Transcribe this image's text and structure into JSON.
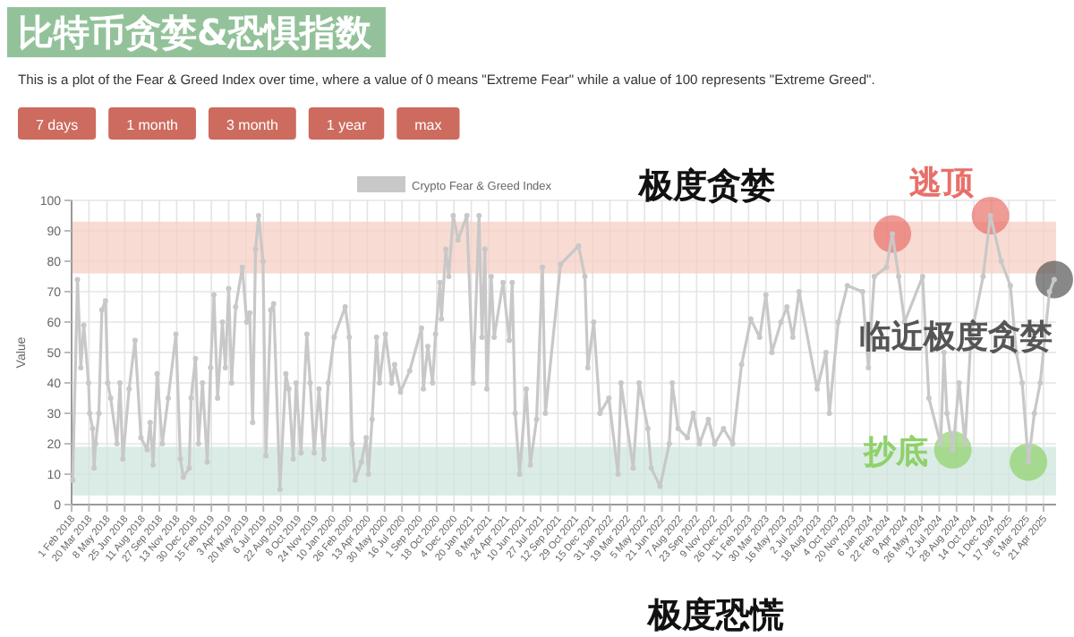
{
  "chart_data": [
    {
      "type": "other",
      "title": "比特币贪婪&恐惧指数",
      "subtitle": "This is a plot of the Fear & Greed Index over time, where a value of 0 means \"Extreme Fear\" while a value of 100 represents \"Extreme Greed\".",
      "annotations": [
        "7 days",
        "1 month",
        "3 month",
        "1 year",
        "max"
      ]
    },
    {
      "type": "line",
      "ylabel": "Value",
      "grid": true,
      "legend": "top",
      "marker": "circle",
      "ylim": [
        0,
        100
      ],
      "yticks": [
        0,
        10,
        20,
        30,
        40,
        50,
        60,
        70,
        80,
        90,
        100
      ],
      "xlim": [
        "2018-02-01",
        "2025-05-25"
      ],
      "xticks": [
        {
          "value": "2018-02-01",
          "label": "1 Feb 2018"
        },
        {
          "value": "2018-03-20",
          "label": "20 Mar 2018"
        },
        {
          "value": "2018-05-08",
          "label": "8 May 2018"
        },
        {
          "value": "2018-06-25",
          "label": "25 Jun 2018"
        },
        {
          "value": "2018-08-11",
          "label": "11 Aug 2018"
        },
        {
          "value": "2018-09-27",
          "label": "27 Sep 2018"
        },
        {
          "value": "2018-11-13",
          "label": "13 Nov 2018"
        },
        {
          "value": "2018-12-30",
          "label": "30 Dec 2018"
        },
        {
          "value": "2019-02-15",
          "label": "15 Feb 2019"
        },
        {
          "value": "2019-04-03",
          "label": "3 Apr 2019"
        },
        {
          "value": "2019-05-20",
          "label": "20 May 2019"
        },
        {
          "value": "2019-07-06",
          "label": "6 Jul 2019"
        },
        {
          "value": "2019-08-22",
          "label": "22 Aug 2019"
        },
        {
          "value": "2019-10-08",
          "label": "8 Oct 2019"
        },
        {
          "value": "2019-11-24",
          "label": "24 Nov 2019"
        },
        {
          "value": "2020-01-10",
          "label": "10 Jan 2020"
        },
        {
          "value": "2020-02-26",
          "label": "26 Feb 2020"
        },
        {
          "value": "2020-04-13",
          "label": "13 Apr 2020"
        },
        {
          "value": "2020-05-30",
          "label": "30 May 2020"
        },
        {
          "value": "2020-07-16",
          "label": "16 Jul 2020"
        },
        {
          "value": "2020-09-01",
          "label": "1 Sep 2020"
        },
        {
          "value": "2020-10-18",
          "label": "18 Oct 2020"
        },
        {
          "value": "2020-12-04",
          "label": "4 Dec 2020"
        },
        {
          "value": "2021-01-20",
          "label": "20 Jan 2021"
        },
        {
          "value": "2021-03-08",
          "label": "8 Mar 2021"
        },
        {
          "value": "2021-04-24",
          "label": "24 Apr 2021"
        },
        {
          "value": "2021-06-10",
          "label": "10 Jun 2021"
        },
        {
          "value": "2021-07-27",
          "label": "27 Jul 2021"
        },
        {
          "value": "2021-09-12",
          "label": "12 Sep 2021"
        },
        {
          "value": "2021-10-29",
          "label": "29 Oct 2021"
        },
        {
          "value": "2021-12-15",
          "label": "15 Dec 2021"
        },
        {
          "value": "2022-01-31",
          "label": "31 Jan 2022"
        },
        {
          "value": "2022-03-19",
          "label": "19 Mar 2022"
        },
        {
          "value": "2022-05-05",
          "label": "5 May 2022"
        },
        {
          "value": "2022-06-21",
          "label": "21 Jun 2022"
        },
        {
          "value": "2022-08-07",
          "label": "7 Aug 2022"
        },
        {
          "value": "2022-09-23",
          "label": "23 Sep 2022"
        },
        {
          "value": "2022-11-09",
          "label": "9 Nov 2022"
        },
        {
          "value": "2022-12-26",
          "label": "26 Dec 2022"
        },
        {
          "value": "2023-02-11",
          "label": "11 Feb 2023"
        },
        {
          "value": "2023-03-30",
          "label": "30 Mar 2023"
        },
        {
          "value": "2023-05-16",
          "label": "16 May 2023"
        },
        {
          "value": "2023-07-02",
          "label": "2 Jul 2023"
        },
        {
          "value": "2023-08-18",
          "label": "18 Aug 2023"
        },
        {
          "value": "2023-10-04",
          "label": "4 Oct 2023"
        },
        {
          "value": "2023-11-20",
          "label": "20 Nov 2023"
        },
        {
          "value": "2024-01-06",
          "label": "6 Jan 2024"
        },
        {
          "value": "2024-02-22",
          "label": "22 Feb 2024"
        },
        {
          "value": "2024-04-09",
          "label": "9 Apr 2024"
        },
        {
          "value": "2024-05-26",
          "label": "26 May 2024"
        },
        {
          "value": "2024-07-12",
          "label": "12 Jul 2024"
        },
        {
          "value": "2024-08-28",
          "label": "28 Aug 2024"
        },
        {
          "value": "2024-10-14",
          "label": "14 Oct 2024"
        },
        {
          "value": "2024-12-01",
          "label": "1 Dec 2024"
        },
        {
          "value": "2025-01-17",
          "label": "17 Jan 2025"
        },
        {
          "value": "2025-03-05",
          "label": "5 Mar 2025"
        },
        {
          "value": "2025-04-21",
          "label": "21 Apr 2025"
        }
      ],
      "bands": [
        {
          "axis": "y",
          "from": 76,
          "to": 93,
          "color": "#f5cfc4",
          "label": "极度贪婪"
        },
        {
          "axis": "y",
          "from": 3,
          "to": 19,
          "color": "#cfe6de",
          "label": "极度恐慌"
        }
      ],
      "series": [
        {
          "name": "Crypto Fear & Greed Index",
          "color": "#c8c8c8",
          "x": [
            "2018-02-04",
            "2018-02-17",
            "2018-02-26",
            "2018-03-06",
            "2018-03-19",
            "2018-03-22",
            "2018-03-30",
            "2018-04-03",
            "2018-04-07",
            "2018-04-16",
            "2018-04-24",
            "2018-05-04",
            "2018-05-10",
            "2018-05-18",
            "2018-06-04",
            "2018-06-12",
            "2018-06-20",
            "2018-07-07",
            "2018-07-23",
            "2018-08-08",
            "2018-08-25",
            "2018-09-02",
            "2018-09-10",
            "2018-09-21",
            "2018-10-05",
            "2018-10-21",
            "2018-11-11",
            "2018-11-23",
            "2018-12-01",
            "2018-12-17",
            "2018-12-22",
            "2019-01-03",
            "2019-01-11",
            "2019-01-22",
            "2019-02-04",
            "2019-02-13",
            "2019-02-22",
            "2019-03-04",
            "2019-03-17",
            "2019-03-25",
            "2019-04-03",
            "2019-04-11",
            "2019-04-22",
            "2019-05-10",
            "2019-05-22",
            "2019-05-30",
            "2019-06-07",
            "2019-06-15",
            "2019-06-23",
            "2019-07-05",
            "2019-07-13",
            "2019-07-26",
            "2019-08-03",
            "2019-08-20",
            "2019-09-05",
            "2019-09-13",
            "2019-09-25",
            "2019-10-03",
            "2019-10-16",
            "2019-11-01",
            "2019-11-10",
            "2019-11-21",
            "2019-12-04",
            "2019-12-17",
            "2019-12-29",
            "2020-01-14",
            "2020-02-13",
            "2020-02-24",
            "2020-03-03",
            "2020-03-11",
            "2020-03-28",
            "2020-04-10",
            "2020-04-16",
            "2020-04-26",
            "2020-05-08",
            "2020-05-16",
            "2020-06-01",
            "2020-06-18",
            "2020-06-26",
            "2020-07-12",
            "2020-08-06",
            "2020-09-07",
            "2020-09-12",
            "2020-09-24",
            "2020-10-07",
            "2020-10-15",
            "2020-10-27",
            "2020-10-31",
            "2020-11-12",
            "2020-11-20",
            "2020-12-02",
            "2020-12-15",
            "2021-01-08",
            "2021-01-25",
            "2021-02-10",
            "2021-02-18",
            "2021-02-26",
            "2021-03-03",
            "2021-03-15",
            "2021-03-23",
            "2021-04-16",
            "2021-05-03",
            "2021-05-11",
            "2021-05-19",
            "2021-05-31",
            "2021-06-18",
            "2021-06-29",
            "2021-07-16",
            "2021-08-01",
            "2021-08-09",
            "2021-09-19",
            "2021-11-07",
            "2021-11-24",
            "2021-12-02",
            "2021-12-18",
            "2022-01-04",
            "2022-01-28",
            "2022-02-22",
            "2022-03-02",
            "2022-04-04",
            "2022-04-20",
            "2022-05-14",
            "2022-05-23",
            "2022-06-16",
            "2022-07-11",
            "2022-07-19",
            "2022-08-04",
            "2022-08-29",
            "2022-09-14",
            "2022-10-01",
            "2022-10-25",
            "2022-11-11",
            "2022-12-05",
            "2022-12-30",
            "2023-01-23",
            "2023-02-17",
            "2023-03-13",
            "2023-03-30",
            "2023-04-15",
            "2023-05-10",
            "2023-05-26",
            "2023-06-11",
            "2023-06-28",
            "2023-08-16",
            "2023-09-09",
            "2023-09-18",
            "2023-10-12",
            "2023-11-06",
            "2023-12-17",
            "2024-01-02",
            "2024-01-18",
            "2024-02-20",
            "2024-03-07",
            "2024-03-24",
            "2024-04-09",
            "2024-05-28",
            "2024-06-14",
            "2024-07-16",
            "2024-07-25",
            "2024-08-02",
            "2024-08-18",
            "2024-09-04",
            "2024-09-20",
            "2024-10-06",
            "2024-11-08",
            "2024-11-28",
            "2024-12-27",
            "2025-01-21",
            "2025-02-06",
            "2025-02-22",
            "2025-03-11",
            "2025-03-27",
            "2025-04-12",
            "2025-05-07",
            "2025-05-20"
          ],
          "values": [
            8,
            74,
            45,
            59,
            40,
            30,
            25,
            12,
            20,
            30,
            64,
            67,
            40,
            35,
            20,
            40,
            15,
            38,
            54,
            22,
            18,
            27,
            13,
            43,
            20,
            35,
            56,
            15,
            9,
            12,
            35,
            48,
            20,
            40,
            14,
            45,
            69,
            35,
            60,
            45,
            71,
            40,
            65,
            78,
            60,
            63,
            27,
            84,
            95,
            80,
            16,
            64,
            66,
            5,
            43,
            38,
            15,
            40,
            17,
            56,
            40,
            17,
            38,
            15,
            40,
            55,
            65,
            55,
            20,
            8,
            14,
            22,
            10,
            28,
            55,
            40,
            56,
            40,
            46,
            37,
            44,
            58,
            38,
            52,
            40,
            56,
            73,
            61,
            84,
            75,
            95,
            87,
            95,
            40,
            95,
            55,
            84,
            38,
            75,
            55,
            73,
            54,
            73,
            30,
            10,
            38,
            13,
            28,
            78,
            30,
            79,
            85,
            75,
            45,
            60,
            30,
            35,
            10,
            40,
            12,
            40,
            25,
            12,
            6,
            20,
            40,
            25,
            22,
            30,
            20,
            28,
            20,
            25,
            20,
            46,
            61,
            55,
            69,
            50,
            60,
            65,
            55,
            70,
            38,
            50,
            30,
            60,
            72,
            70,
            45,
            75,
            78,
            89,
            75,
            60,
            75,
            35,
            20,
            50,
            30,
            18,
            40,
            20,
            55,
            75,
            95,
            80,
            72,
            50,
            40,
            14,
            30,
            40,
            70,
            74
          ]
        },
        {
          "type": "scatter",
          "color": "#e8706a",
          "x": [
            "2024-03-07",
            "2024-11-28"
          ],
          "values": [
            89,
            95
          ]
        },
        {
          "type": "scatter",
          "color": "#8fd16a",
          "x": [
            "2024-08-18",
            "2025-03-11"
          ],
          "values": [
            18,
            14
          ]
        },
        {
          "type": "scatter",
          "color": "#555555",
          "x": [
            "2025-05-20"
          ],
          "values": [
            74
          ]
        }
      ],
      "annotations": [
        "逃顶",
        "抄底",
        "临近极度贪婪"
      ]
    }
  ]
}
